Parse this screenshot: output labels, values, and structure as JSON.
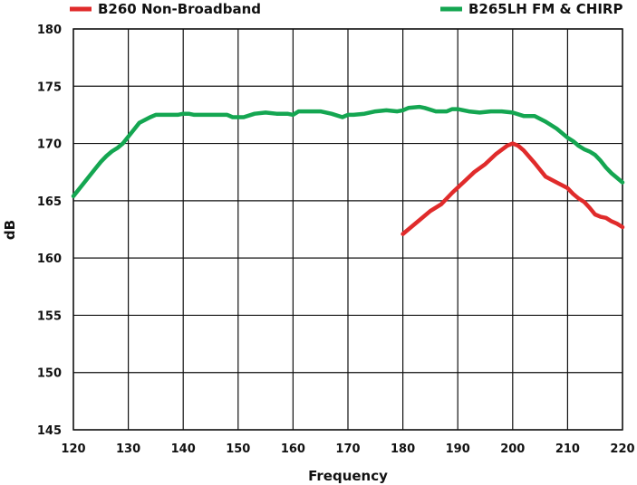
{
  "chart_data": {
    "type": "line",
    "xlabel": "Frequency",
    "ylabel": "dB",
    "xlim": [
      120,
      220
    ],
    "ylim": [
      145,
      180
    ],
    "xticks": [
      120,
      130,
      140,
      150,
      160,
      170,
      180,
      190,
      200,
      210,
      220
    ],
    "yticks": [
      145,
      150,
      155,
      160,
      165,
      170,
      175,
      180
    ],
    "grid": true,
    "legend_position": "top",
    "series": [
      {
        "name": "B260 Non-Broadband",
        "color": "#e02b2b",
        "x": [
          180,
          181,
          183,
          185,
          187,
          189,
          191,
          193,
          195,
          197,
          199,
          200,
          201,
          202,
          204,
          206,
          208,
          210,
          211,
          212,
          213,
          214,
          215,
          216,
          217,
          218,
          219,
          220
        ],
        "y": [
          162.1,
          162.5,
          163.3,
          164.1,
          164.7,
          165.7,
          166.6,
          167.5,
          168.2,
          169.1,
          169.8,
          170.0,
          169.8,
          169.4,
          168.3,
          167.1,
          166.6,
          166.1,
          165.6,
          165.2,
          164.9,
          164.4,
          163.8,
          163.6,
          163.5,
          163.2,
          163.0,
          162.7
        ]
      },
      {
        "name": "B265LH FM & CHIRP",
        "color": "#14a651",
        "x": [
          120,
          122,
          124,
          125,
          126,
          127,
          128,
          129,
          130,
          131,
          132,
          134,
          135,
          137,
          139,
          140,
          141,
          142,
          144,
          146,
          148,
          149,
          150,
          151,
          153,
          155,
          157,
          159,
          160,
          161,
          163,
          165,
          167,
          169,
          170,
          171,
          173,
          175,
          177,
          179,
          180,
          181,
          183,
          184,
          186,
          188,
          189,
          190,
          192,
          194,
          196,
          198,
          200,
          202,
          204,
          206,
          208,
          210,
          211,
          212,
          213,
          214,
          215,
          216,
          217,
          218,
          219,
          220
        ],
        "y": [
          165.4,
          166.6,
          167.8,
          168.4,
          168.9,
          169.3,
          169.6,
          170.0,
          170.6,
          171.2,
          171.8,
          172.3,
          172.5,
          172.5,
          172.5,
          172.6,
          172.6,
          172.5,
          172.5,
          172.5,
          172.5,
          172.3,
          172.3,
          172.3,
          172.6,
          172.7,
          172.6,
          172.6,
          172.5,
          172.8,
          172.8,
          172.8,
          172.6,
          172.3,
          172.5,
          172.5,
          172.6,
          172.8,
          172.9,
          172.8,
          172.9,
          173.1,
          173.2,
          173.1,
          172.8,
          172.8,
          173.0,
          173.0,
          172.8,
          172.7,
          172.8,
          172.8,
          172.7,
          172.4,
          172.4,
          171.9,
          171.3,
          170.5,
          170.2,
          169.8,
          169.5,
          169.3,
          169.0,
          168.5,
          167.9,
          167.4,
          167.0,
          166.6
        ]
      }
    ]
  }
}
